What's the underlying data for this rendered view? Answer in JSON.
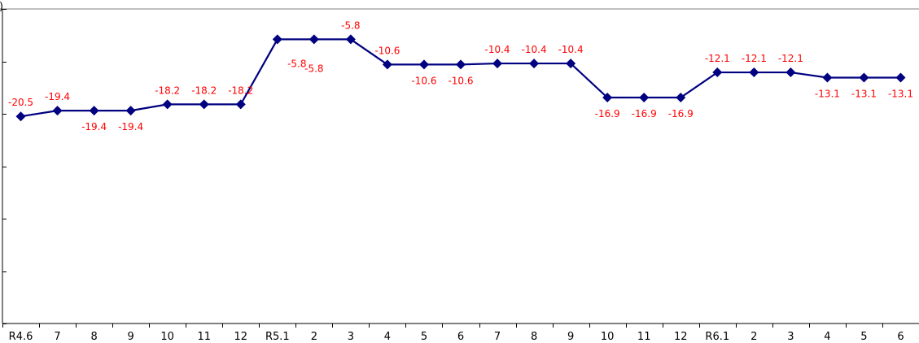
{
  "chart_data": {
    "type": "line",
    "categories": [
      "R4.6",
      "7",
      "8",
      "9",
      "10",
      "11",
      "12",
      "R5.1",
      "2",
      "3",
      "4",
      "5",
      "6",
      "7",
      "8",
      "9",
      "10",
      "11",
      "12",
      "R6.1",
      "2",
      "3",
      "4",
      "5",
      "6"
    ],
    "series": [
      {
        "values": [
          -20.5,
          -19.4,
          -19.4,
          -19.4,
          -18.2,
          -18.2,
          -18.2,
          -5.8,
          -5.8,
          -5.8,
          -10.6,
          -10.6,
          -10.6,
          -10.4,
          -10.4,
          -10.4,
          -16.9,
          -16.9,
          -16.9,
          -12.1,
          -12.1,
          -12.1,
          -13.1,
          -13.1,
          -13.1
        ],
        "color": "#000080"
      }
    ],
    "data_labels": [
      "-20.5",
      "-19.4",
      "-19.4",
      "-19.4",
      "-18.2",
      "-18.2",
      "-18.2",
      "-5.8",
      "-5.8",
      "-5.8",
      "-10.6",
      "-10.6",
      "-10.6",
      "-10.4",
      "-10.4",
      "-10.4",
      "-16.9",
      "-16.9",
      "-16.9",
      "-12.1",
      "-12.1",
      "-12.1",
      "-13.1",
      "-13.1",
      "-13.1"
    ],
    "data_label_color": "#ff0000",
    "unit_fragment": ")",
    "ylim": [
      -60,
      0
    ],
    "y_ticks": [
      0,
      -10,
      -20,
      -30,
      -40,
      -50,
      -60
    ],
    "ylabel": "",
    "xlabel": "",
    "title": "",
    "grid": false,
    "legend": "none",
    "marker": "diamond"
  }
}
